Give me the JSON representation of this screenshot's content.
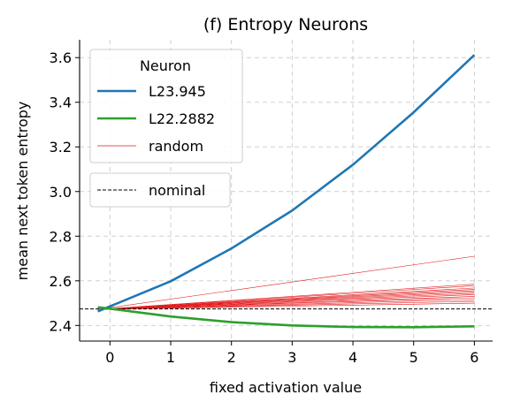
{
  "chart_data": {
    "type": "line",
    "title": "(f) Entropy Neurons",
    "xlabel": "fixed activation value",
    "ylabel": "mean next token entropy",
    "xlim": [
      -0.5,
      6.3
    ],
    "ylim": [
      2.33,
      3.68
    ],
    "xticks": [
      0,
      1,
      2,
      3,
      4,
      5,
      6
    ],
    "yticks": [
      2.4,
      2.6,
      2.8,
      3.0,
      3.2,
      3.4,
      3.6
    ],
    "grid": true,
    "legend_title": "Neuron",
    "legend_position": "top-left",
    "series": [
      {
        "name": "L23.945",
        "color": "#1f77b4",
        "x": [
          -0.2,
          1,
          2,
          3,
          4,
          5,
          6
        ],
        "y": [
          2.463,
          2.598,
          2.745,
          2.915,
          3.12,
          3.355,
          3.612
        ]
      },
      {
        "name": "L22.2882",
        "color": "#2ca02c",
        "x": [
          -0.2,
          1,
          2,
          3,
          4,
          5,
          6
        ],
        "y": [
          2.482,
          2.44,
          2.415,
          2.4,
          2.393,
          2.392,
          2.396
        ]
      }
    ],
    "random_series": {
      "name": "random",
      "color": "#e41a1c",
      "x": [
        -0.2,
        6
      ],
      "lines": [
        [
          2.472,
          2.71
        ],
        [
          2.472,
          2.585
        ],
        [
          2.472,
          2.578
        ],
        [
          2.472,
          2.568
        ],
        [
          2.472,
          2.562
        ],
        [
          2.472,
          2.556
        ],
        [
          2.472,
          2.55
        ],
        [
          2.472,
          2.544
        ],
        [
          2.472,
          2.538
        ],
        [
          2.472,
          2.53
        ],
        [
          2.472,
          2.524
        ],
        [
          2.472,
          2.516
        ],
        [
          2.472,
          2.508
        ],
        [
          2.472,
          2.5
        ]
      ]
    },
    "nominal": {
      "name": "nominal",
      "y": 2.474,
      "color": "#000000"
    }
  }
}
